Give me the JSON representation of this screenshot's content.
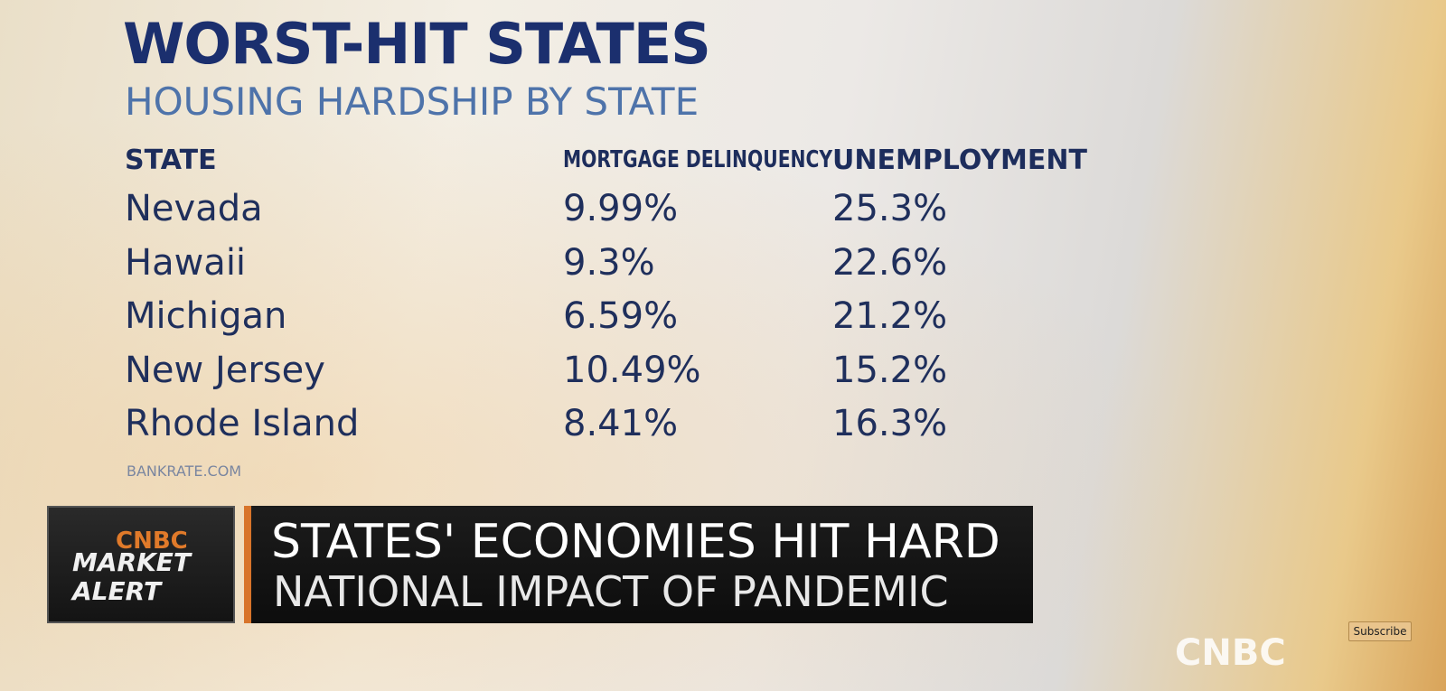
{
  "header": {
    "title": "WORST-HIT STATES",
    "subtitle": "HOUSING HARDSHIP BY STATE"
  },
  "table": {
    "columns": [
      "STATE",
      "MORTGAGE DELINQUENCY",
      "UNEMPLOYMENT"
    ],
    "rows": [
      [
        "Nevada",
        "9.99%",
        "25.3%"
      ],
      [
        "Hawaii",
        "9.3%",
        "22.6%"
      ],
      [
        "Michigan",
        "6.59%",
        "21.2%"
      ],
      [
        "New Jersey",
        "10.49%",
        "15.2%"
      ],
      [
        "Rhode Island",
        "8.41%",
        "16.3%"
      ]
    ]
  },
  "source": "BANKRATE.COM",
  "lower_third": {
    "logo": "CNBC",
    "alert": [
      "MARKET",
      "ALERT"
    ],
    "headline": "STATES' ECONOMIES HIT HARD",
    "subheadline": "NATIONAL IMPACT OF PANDEMIC"
  },
  "subscribe": "Subscribe",
  "watermark": "CNBC"
}
